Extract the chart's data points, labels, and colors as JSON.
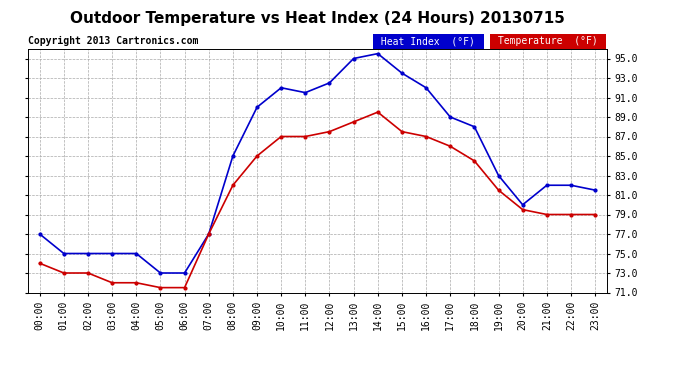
{
  "title": "Outdoor Temperature vs Heat Index (24 Hours) 20130715",
  "copyright": "Copyright 2013 Cartronics.com",
  "background_color": "#ffffff",
  "plot_bg_color": "#ffffff",
  "grid_color": "#aaaaaa",
  "hours": [
    "00:00",
    "01:00",
    "02:00",
    "03:00",
    "04:00",
    "05:00",
    "06:00",
    "07:00",
    "08:00",
    "09:00",
    "10:00",
    "11:00",
    "12:00",
    "13:00",
    "14:00",
    "15:00",
    "16:00",
    "17:00",
    "18:00",
    "19:00",
    "20:00",
    "21:00",
    "22:00",
    "23:00"
  ],
  "heat_index": [
    77.0,
    75.0,
    75.0,
    75.0,
    75.0,
    73.0,
    73.0,
    77.0,
    85.0,
    90.0,
    92.0,
    91.5,
    92.5,
    95.0,
    95.5,
    93.5,
    92.0,
    89.0,
    88.0,
    83.0,
    80.0,
    82.0,
    82.0,
    81.5
  ],
  "temperature": [
    74.0,
    73.0,
    73.0,
    72.0,
    72.0,
    71.5,
    71.5,
    77.0,
    82.0,
    85.0,
    87.0,
    87.0,
    87.5,
    88.5,
    89.5,
    87.5,
    87.0,
    86.0,
    84.5,
    81.5,
    79.5,
    79.0,
    79.0,
    79.0
  ],
  "heat_index_color": "#0000cc",
  "temperature_color": "#cc0000",
  "ylim_min": 71.0,
  "ylim_max": 96.0,
  "yticks": [
    71.0,
    73.0,
    75.0,
    77.0,
    79.0,
    81.0,
    83.0,
    85.0,
    87.0,
    89.0,
    91.0,
    93.0,
    95.0
  ],
  "legend_heat_bg": "#0000cc",
  "legend_temp_bg": "#cc0000",
  "legend_text_color": "#ffffff",
  "title_fontsize": 11,
  "copyright_fontsize": 7,
  "tick_fontsize": 7,
  "legend_fontsize": 7,
  "marker": ".",
  "marker_size": 4,
  "linewidth": 1.2
}
